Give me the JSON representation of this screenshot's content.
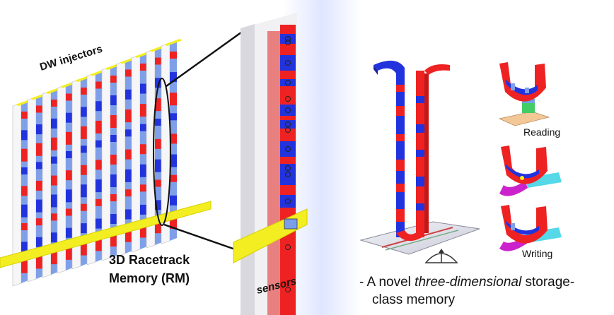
{
  "labels": {
    "dw_injectors": "DW injectors",
    "rm_title_line1": "3D Racetrack",
    "rm_title_line2": "Memory (RM)",
    "sensors": "sensors",
    "reading": "Reading",
    "writing": "Writing"
  },
  "caption": {
    "line1_prefix": "- A novel ",
    "line1_emphasis": "three-dimensional",
    "line1_suffix": " storage-",
    "line2": "class memory"
  },
  "colors": {
    "red": "#ee2222",
    "blue": "#2233dd",
    "light_blue": "#7fa0e8",
    "yellow": "#f2ee22",
    "cyan": "#55d8e8",
    "magenta": "#cc22cc"
  },
  "icons": [
    "ellipse-zoom-marker",
    "meter-icon"
  ]
}
